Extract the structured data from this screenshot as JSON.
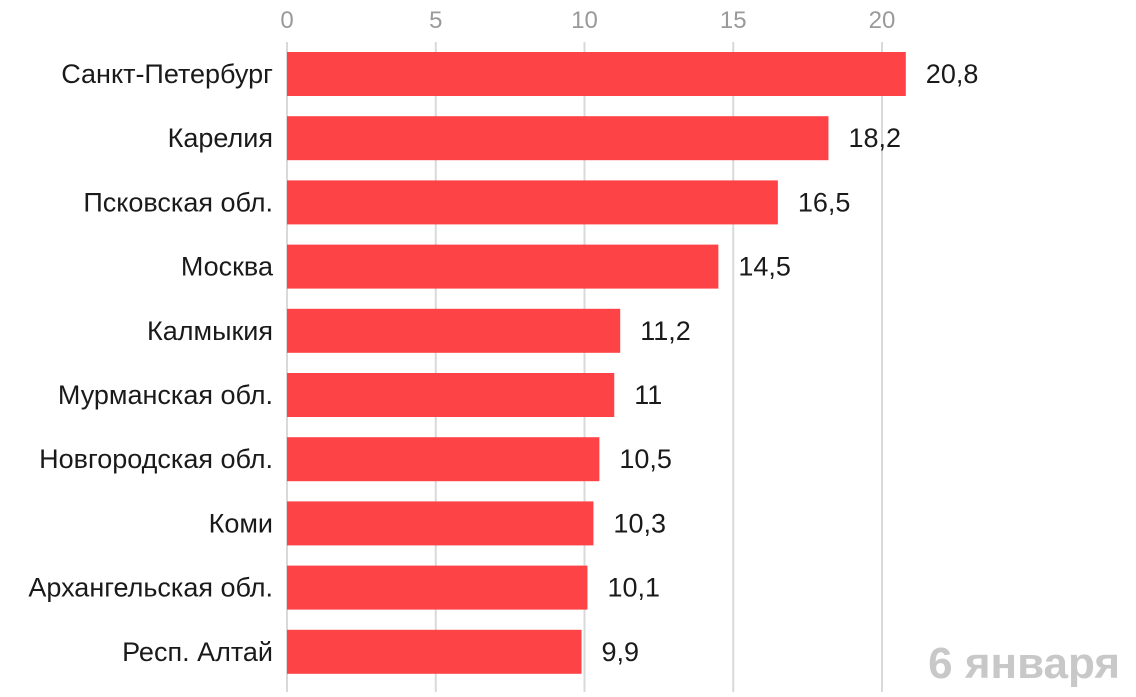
{
  "chart_data": {
    "type": "bar",
    "orientation": "horizontal",
    "categories": [
      "Санкт-Петербург",
      "Карелия",
      "Псковская обл.",
      "Москва",
      "Калмыкия",
      "Мурманская обл.",
      "Новгородская обл.",
      "Коми",
      "Архангельская обл.",
      "Респ. Алтай"
    ],
    "values": [
      20.8,
      18.2,
      16.5,
      14.5,
      11.2,
      11,
      10.5,
      10.3,
      10.1,
      9.9
    ],
    "value_labels": [
      "20,8",
      "18,2",
      "16,5",
      "14,5",
      "11,2",
      "11",
      "10,5",
      "10,3",
      "10,1",
      "9,9"
    ],
    "xlim": [
      0,
      21
    ],
    "x_ticks": [
      0,
      5,
      10,
      15,
      20
    ],
    "x_tick_labels": [
      "0",
      "5",
      "10",
      "15",
      "20"
    ],
    "x_axis_position": "top",
    "grid": true,
    "legend": "none",
    "title": "",
    "xlabel": "",
    "ylabel": "",
    "annotation": "6 января",
    "bar_color": "#fe4346",
    "grid_color": "#d9d9d9",
    "tick_color": "#9a9a9a",
    "label_color": "#1a1a1a",
    "annotation_color": "#c8c8c8"
  }
}
